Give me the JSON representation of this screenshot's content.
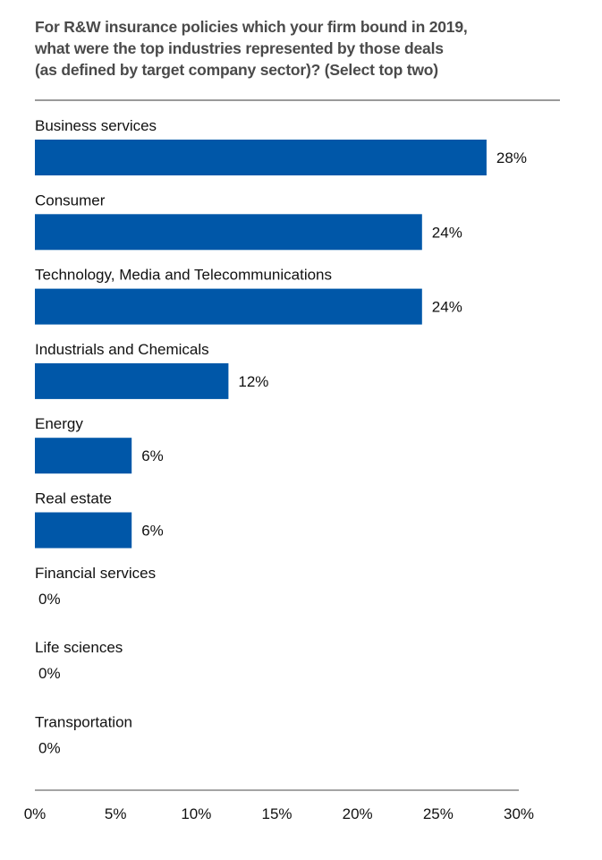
{
  "chart_data": {
    "type": "bar",
    "orientation": "horizontal",
    "title": "For R&W insurance policies which your firm bound in 2019, what were the top industries represented by those deals (as defined by target company sector)? (Select top two)",
    "title_lines": [
      "For R&W insurance policies which your firm bound in 2019,",
      "what were the top industries represented by those deals",
      "(as defined by target company sector)? (Select top two)"
    ],
    "categories": [
      "Business services",
      "Consumer",
      "Technology, Media and Telecommunications",
      "Industrials and Chemicals",
      "Energy",
      "Real estate",
      "Financial services",
      "Life sciences",
      "Transportation"
    ],
    "values": [
      28,
      24,
      24,
      12,
      6,
      6,
      0,
      0,
      0
    ],
    "value_labels": [
      "28%",
      "24%",
      "24%",
      "12%",
      "6%",
      "6%",
      "0%",
      "0%",
      "0%"
    ],
    "xlabel": "",
    "ylabel": "",
    "xlim": [
      0,
      30
    ],
    "xticks": [
      0,
      5,
      10,
      15,
      20,
      25,
      30
    ],
    "xtick_labels": [
      "0%",
      "5%",
      "10%",
      "15%",
      "20%",
      "25%",
      "30%"
    ],
    "grid": false,
    "legend": "none",
    "bar_color": "#0057A8"
  }
}
